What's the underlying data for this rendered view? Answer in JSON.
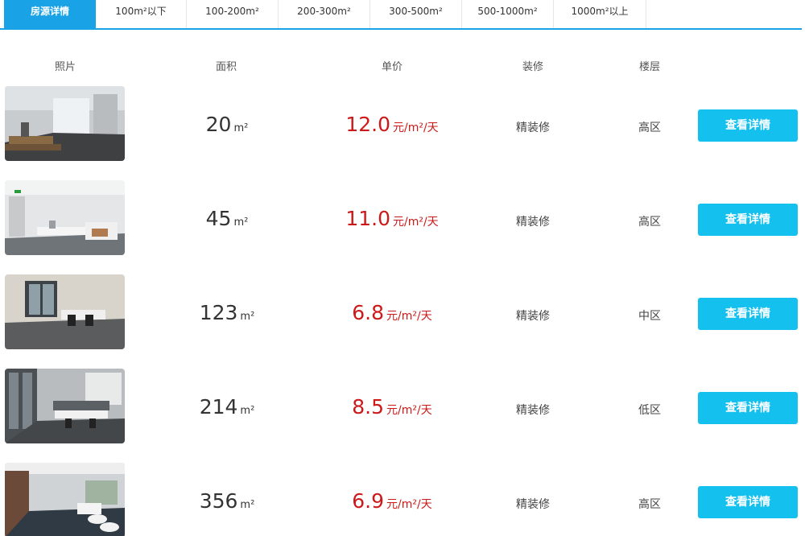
{
  "tabs": [
    {
      "label": "房源详情",
      "active": true
    },
    {
      "label": "100m²以下",
      "active": false
    },
    {
      "label": "100-200m²",
      "active": false
    },
    {
      "label": "200-300m²",
      "active": false
    },
    {
      "label": "300-500m²",
      "active": false
    },
    {
      "label": "500-1000m²",
      "active": false
    },
    {
      "label": "1000m²以上",
      "active": false
    }
  ],
  "columns": {
    "photo": "照片",
    "area": "面积",
    "price": "单价",
    "decoration": "装修",
    "floor": "楼层"
  },
  "listings": [
    {
      "area": "20",
      "area_unit": "m²",
      "price": "12.0",
      "price_unit": "元/m²/天",
      "decoration": "精装修",
      "floor": "高区",
      "button": "查看详情"
    },
    {
      "area": "45",
      "area_unit": "m²",
      "price": "11.0",
      "price_unit": "元/m²/天",
      "decoration": "精装修",
      "floor": "高区",
      "button": "查看详情"
    },
    {
      "area": "123",
      "area_unit": "m²",
      "price": "6.8",
      "price_unit": "元/m²/天",
      "decoration": "精装修",
      "floor": "中区",
      "button": "查看详情"
    },
    {
      "area": "214",
      "area_unit": "m²",
      "price": "8.5",
      "price_unit": "元/m²/天",
      "decoration": "精装修",
      "floor": "低区",
      "button": "查看详情"
    },
    {
      "area": "356",
      "area_unit": "m²",
      "price": "6.9",
      "price_unit": "元/m²/天",
      "decoration": "精装修",
      "floor": "高区",
      "button": "查看详情"
    }
  ],
  "colors": {
    "accent": "#1aa2e6",
    "button": "#14c0ee",
    "price": "#cc1a1a"
  }
}
